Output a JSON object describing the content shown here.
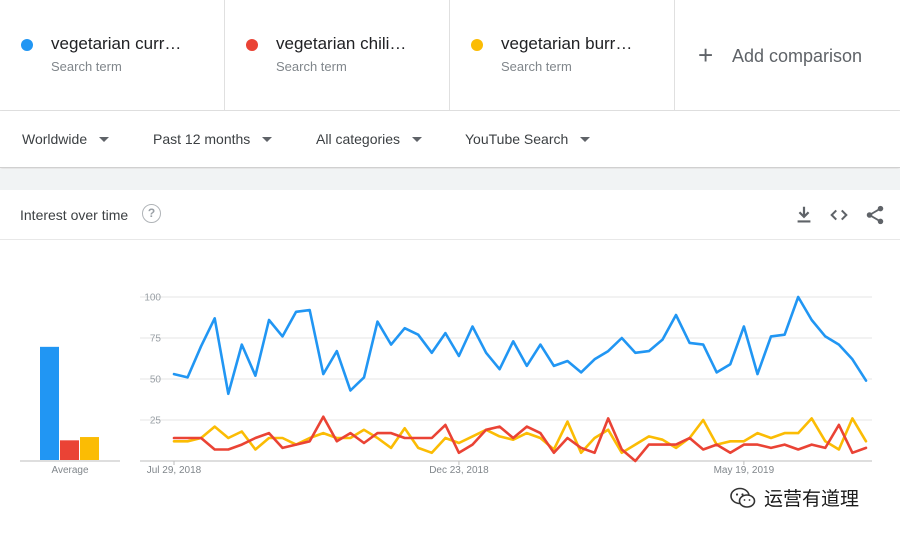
{
  "search_terms": [
    {
      "label": "vegetarian curr…",
      "type": "Search term",
      "color": "#2196f3"
    },
    {
      "label": "vegetarian chili…",
      "type": "Search term",
      "color": "#ea4335"
    },
    {
      "label": "vegetarian burr…",
      "type": "Search term",
      "color": "#fbbc04"
    }
  ],
  "add_comparison": {
    "label": "Add comparison",
    "icon": "plus-icon"
  },
  "filters": {
    "region": "Worldwide",
    "time_range": "Past 12 months",
    "category": "All categories",
    "property": "YouTube Search"
  },
  "card": {
    "title": "Interest over time",
    "help_icon": "?",
    "actions": [
      "download-icon",
      "embed-icon",
      "share-icon"
    ]
  },
  "watermark": {
    "text": "运营有道理",
    "icon": "wechat-icon"
  },
  "chart_data": {
    "type": "line",
    "ylim": [
      0,
      100
    ],
    "y_ticks": [
      25,
      50,
      75,
      100
    ],
    "y_tick_labels": [
      "25",
      "50",
      "75",
      "100"
    ],
    "x_tick_labels": [
      {
        "index": 0,
        "label": "Jul 29, 2018"
      },
      {
        "index": 21,
        "label": "Dec 23, 2018"
      },
      {
        "index": 42,
        "label": "May 19, 2019"
      }
    ],
    "grid": true,
    "series": [
      {
        "name": "vegetarian curr…",
        "color": "#2196f3",
        "values": [
          53,
          51,
          70,
          87,
          41,
          71,
          52,
          86,
          76,
          91,
          92,
          53,
          67,
          43,
          51,
          85,
          71,
          81,
          77,
          66,
          78,
          64,
          82,
          66,
          56,
          73,
          58,
          71,
          58,
          61,
          54,
          62,
          67,
          75,
          66,
          67,
          74,
          89,
          72,
          71,
          54,
          59,
          82,
          53,
          76,
          77,
          100,
          86,
          76,
          71,
          62,
          49
        ]
      },
      {
        "name": "vegetarian chili…",
        "color": "#ea4335",
        "values": [
          14,
          14,
          14,
          7,
          7,
          10,
          14,
          17,
          8,
          10,
          12,
          27,
          12,
          17,
          11,
          17,
          17,
          14,
          14,
          14,
          22,
          5,
          10,
          19,
          21,
          14,
          21,
          17,
          5,
          14,
          8,
          5,
          26,
          7,
          0,
          10,
          10,
          10,
          14,
          7,
          10,
          5,
          10,
          10,
          8,
          10,
          7,
          10,
          8,
          22,
          5,
          8
        ]
      },
      {
        "name": "vegetarian burr…",
        "color": "#fbbc04",
        "values": [
          12,
          12,
          14,
          21,
          14,
          18,
          7,
          14,
          14,
          10,
          14,
          17,
          14,
          14,
          19,
          14,
          8,
          20,
          8,
          5,
          14,
          11,
          15,
          19,
          15,
          13,
          17,
          14,
          7,
          24,
          5,
          14,
          19,
          5,
          10,
          15,
          13,
          8,
          14,
          25,
          10,
          12,
          12,
          17,
          14,
          17,
          17,
          26,
          12,
          7,
          26,
          12
        ]
      }
    ],
    "averages": [
      {
        "name": "vegetarian curr…",
        "value": 69,
        "color": "#2196f3"
      },
      {
        "name": "vegetarian chili…",
        "value": 12,
        "color": "#ea4335"
      },
      {
        "name": "vegetarian burr…",
        "value": 14,
        "color": "#fbbc04"
      }
    ],
    "average_label": "Average"
  }
}
